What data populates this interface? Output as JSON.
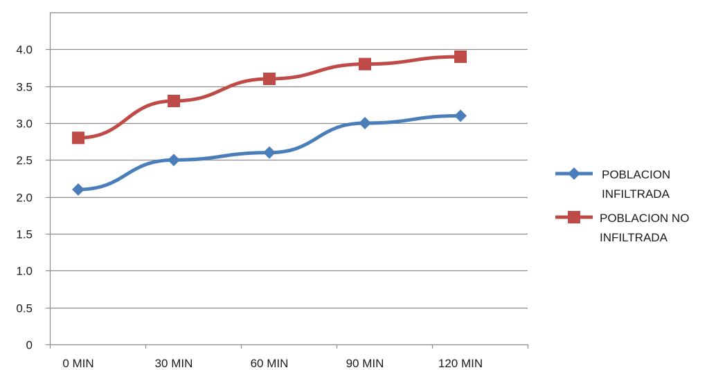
{
  "chart_data": {
    "type": "line",
    "categories": [
      "0 MIN",
      "30 MIN",
      "60 MIN",
      "90 MIN",
      "120 MIN"
    ],
    "series": [
      {
        "name": "POBLACION INFILTRADA",
        "name_lines": [
          "POBLACION",
          "INFILTRADA"
        ],
        "color": "#4a7ebb",
        "marker": "diamond",
        "values": [
          2.1,
          2.5,
          2.6,
          3.0,
          3.1
        ]
      },
      {
        "name": "POBLACION NO INFILTRADA",
        "name_lines": [
          "POBLACION NO",
          "INFILTRADA"
        ],
        "color": "#be4b48",
        "marker": "square",
        "values": [
          2.8,
          3.3,
          3.6,
          3.8,
          3.9
        ]
      }
    ],
    "yticks": [
      "0",
      "0.5",
      "1.0",
      "1.5",
      "2.0",
      "2.5",
      "3.0",
      "3.5",
      "4.0"
    ],
    "ylim": [
      0,
      4.5
    ],
    "grid": true,
    "legend_position": "right"
  }
}
